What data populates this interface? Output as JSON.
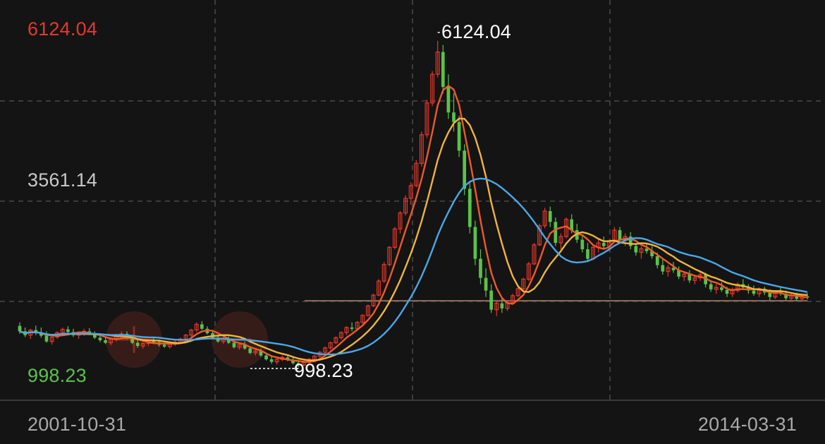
{
  "chart_data": {
    "type": "candlestick",
    "y_axis": {
      "max_label": "6124.04",
      "mid_label": "3561.14",
      "min_label": "998.23",
      "max": 6124.04,
      "min": 998.23
    },
    "x_axis": {
      "start_label": "2001-10-31",
      "end_label": "2014-03-31"
    },
    "annotations": {
      "high": "6124.04",
      "low": "998.23"
    },
    "reference_level": 2040,
    "ohlc": [
      [
        1645,
        1700,
        1520,
        1560
      ],
      [
        1560,
        1620,
        1470,
        1500
      ],
      [
        1500,
        1600,
        1440,
        1580
      ],
      [
        1580,
        1650,
        1500,
        1540
      ],
      [
        1540,
        1620,
        1460,
        1490
      ],
      [
        1490,
        1560,
        1380,
        1400
      ],
      [
        1400,
        1500,
        1350,
        1470
      ],
      [
        1470,
        1560,
        1440,
        1540
      ],
      [
        1540,
        1620,
        1500,
        1590
      ],
      [
        1590,
        1640,
        1520,
        1550
      ],
      [
        1550,
        1600,
        1470,
        1500
      ],
      [
        1500,
        1560,
        1440,
        1530
      ],
      [
        1530,
        1600,
        1490,
        1560
      ],
      [
        1560,
        1610,
        1500,
        1530
      ],
      [
        1530,
        1560,
        1440,
        1460
      ],
      [
        1460,
        1520,
        1390,
        1420
      ],
      [
        1420,
        1480,
        1360,
        1380
      ],
      [
        1380,
        1460,
        1340,
        1440
      ],
      [
        1440,
        1520,
        1400,
        1490
      ],
      [
        1490,
        1560,
        1450,
        1520
      ],
      [
        1520,
        1560,
        1430,
        1450
      ],
      [
        1450,
        1500,
        1360,
        1380
      ],
      [
        1380,
        1420,
        1300,
        1330
      ],
      [
        1330,
        1390,
        1290,
        1370
      ],
      [
        1370,
        1440,
        1330,
        1410
      ],
      [
        1410,
        1470,
        1360,
        1390
      ],
      [
        1390,
        1430,
        1320,
        1350
      ],
      [
        1350,
        1400,
        1300,
        1320
      ],
      [
        1320,
        1380,
        1290,
        1360
      ],
      [
        1360,
        1420,
        1330,
        1390
      ],
      [
        1390,
        1460,
        1370,
        1440
      ],
      [
        1440,
        1520,
        1410,
        1500
      ],
      [
        1500,
        1600,
        1470,
        1580
      ],
      [
        1580,
        1700,
        1550,
        1670
      ],
      [
        1670,
        1720,
        1580,
        1600
      ],
      [
        1600,
        1640,
        1510,
        1530
      ],
      [
        1530,
        1570,
        1440,
        1460
      ],
      [
        1460,
        1500,
        1380,
        1400
      ],
      [
        1400,
        1470,
        1360,
        1440
      ],
      [
        1440,
        1480,
        1360,
        1380
      ],
      [
        1380,
        1420,
        1290,
        1310
      ],
      [
        1310,
        1370,
        1270,
        1350
      ],
      [
        1350,
        1400,
        1270,
        1290
      ],
      [
        1290,
        1330,
        1200,
        1220
      ],
      [
        1220,
        1280,
        1180,
        1250
      ],
      [
        1250,
        1290,
        1160,
        1180
      ],
      [
        1180,
        1220,
        1100,
        1120
      ],
      [
        1120,
        1170,
        1050,
        1080
      ],
      [
        1080,
        1140,
        1040,
        1120
      ],
      [
        1120,
        1180,
        1090,
        1150
      ],
      [
        1150,
        1190,
        1090,
        1110
      ],
      [
        1110,
        1150,
        1040,
        1060
      ],
      [
        1060,
        1110,
        998.23,
        1030
      ],
      [
        1030,
        1090,
        1010,
        1070
      ],
      [
        1070,
        1140,
        1050,
        1120
      ],
      [
        1120,
        1190,
        1100,
        1170
      ],
      [
        1170,
        1250,
        1140,
        1230
      ],
      [
        1230,
        1320,
        1200,
        1300
      ],
      [
        1300,
        1400,
        1270,
        1380
      ],
      [
        1380,
        1480,
        1360,
        1460
      ],
      [
        1460,
        1560,
        1430,
        1540
      ],
      [
        1540,
        1640,
        1500,
        1620
      ],
      [
        1620,
        1700,
        1560,
        1600
      ],
      [
        1600,
        1720,
        1580,
        1700
      ],
      [
        1700,
        1830,
        1680,
        1810
      ],
      [
        1810,
        1980,
        1790,
        1960
      ],
      [
        1960,
        2150,
        1940,
        2130
      ],
      [
        2130,
        2380,
        2110,
        2350
      ],
      [
        2350,
        2650,
        2320,
        2610
      ],
      [
        2610,
        2900,
        2580,
        2880
      ],
      [
        2880,
        3200,
        2850,
        3170
      ],
      [
        3170,
        3450,
        3100,
        3420
      ],
      [
        3420,
        3700,
        3380,
        3650
      ],
      [
        3650,
        3900,
        3550,
        3850
      ],
      [
        3850,
        4250,
        3820,
        4200
      ],
      [
        4200,
        4700,
        4150,
        4650
      ],
      [
        4650,
        5200,
        4600,
        5150
      ],
      [
        5150,
        5650,
        5100,
        5600
      ],
      [
        5600,
        6124.04,
        5550,
        5950
      ],
      [
        5950,
        6060,
        5300,
        5400
      ],
      [
        5400,
        5600,
        4900,
        5000
      ],
      [
        5000,
        5300,
        4700,
        4850
      ],
      [
        4850,
        4950,
        4300,
        4400
      ],
      [
        4400,
        4500,
        3700,
        3800
      ],
      [
        3800,
        3900,
        3100,
        3200
      ],
      [
        3200,
        3300,
        2600,
        2700
      ],
      [
        2700,
        2850,
        2300,
        2400
      ],
      [
        2400,
        2550,
        2100,
        2200
      ],
      [
        2200,
        2300,
        1850,
        1900
      ],
      [
        1900,
        2050,
        1800,
        2000
      ],
      [
        2000,
        2100,
        1850,
        1920
      ],
      [
        1920,
        2050,
        1880,
        2010
      ],
      [
        2010,
        2150,
        1990,
        2120
      ],
      [
        2120,
        2250,
        2100,
        2230
      ],
      [
        2230,
        2400,
        2200,
        2380
      ],
      [
        2380,
        2650,
        2350,
        2620
      ],
      [
        2620,
        2950,
        2600,
        2920
      ],
      [
        2920,
        3250,
        2900,
        3220
      ],
      [
        3220,
        3500,
        3180,
        3450
      ],
      [
        3450,
        3520,
        3200,
        3280
      ],
      [
        3280,
        3350,
        2900,
        2950
      ],
      [
        2950,
        3100,
        2850,
        3050
      ],
      [
        3050,
        3350,
        3020,
        3320
      ],
      [
        3320,
        3400,
        3100,
        3150
      ],
      [
        3150,
        3250,
        2950,
        3000
      ],
      [
        3000,
        3080,
        2800,
        2850
      ],
      [
        2850,
        2950,
        2650,
        2700
      ],
      [
        2700,
        2900,
        2680,
        2880
      ],
      [
        2880,
        3000,
        2800,
        2950
      ],
      [
        2950,
        3050,
        2850,
        2900
      ],
      [
        2900,
        3000,
        2820,
        2980
      ],
      [
        2980,
        3200,
        2950,
        3150
      ],
      [
        3150,
        3200,
        2950,
        3000
      ],
      [
        3000,
        3100,
        2900,
        3050
      ],
      [
        3050,
        3120,
        2850,
        2900
      ],
      [
        2900,
        2950,
        2750,
        2800
      ],
      [
        2800,
        2900,
        2700,
        2860
      ],
      [
        2860,
        2940,
        2780,
        2820
      ],
      [
        2820,
        2900,
        2700,
        2740
      ],
      [
        2740,
        2800,
        2550,
        2600
      ],
      [
        2600,
        2700,
        2450,
        2500
      ],
      [
        2500,
        2600,
        2420,
        2560
      ],
      [
        2560,
        2650,
        2480,
        2520
      ],
      [
        2520,
        2580,
        2380,
        2420
      ],
      [
        2420,
        2500,
        2350,
        2460
      ],
      [
        2460,
        2520,
        2320,
        2360
      ],
      [
        2360,
        2450,
        2300,
        2400
      ],
      [
        2400,
        2500,
        2350,
        2450
      ],
      [
        2450,
        2480,
        2250,
        2300
      ],
      [
        2300,
        2360,
        2180,
        2220
      ],
      [
        2220,
        2300,
        2150,
        2250
      ],
      [
        2250,
        2330,
        2180,
        2210
      ],
      [
        2210,
        2260,
        2100,
        2150
      ],
      [
        2150,
        2250,
        2100,
        2200
      ],
      [
        2200,
        2330,
        2170,
        2300
      ],
      [
        2300,
        2380,
        2210,
        2250
      ],
      [
        2250,
        2300,
        2150,
        2200
      ],
      [
        2200,
        2280,
        2120,
        2150
      ],
      [
        2150,
        2250,
        2100,
        2230
      ],
      [
        2230,
        2260,
        2130,
        2170
      ],
      [
        2170,
        2220,
        2050,
        2100
      ],
      [
        2100,
        2200,
        2070,
        2180
      ],
      [
        2180,
        2250,
        2120,
        2150
      ],
      [
        2150,
        2200,
        2050,
        2080
      ],
      [
        2080,
        2150,
        2040,
        2120
      ],
      [
        2120,
        2170,
        2040,
        2070
      ],
      [
        2070,
        2150,
        2030,
        2110
      ],
      [
        2110,
        2160,
        2060,
        2090
      ]
    ],
    "series": [
      {
        "name": "",
        "color": "#ee5a2a",
        "values": []
      },
      {
        "name": "",
        "color": "#f0b43c",
        "values": []
      },
      {
        "name": "",
        "color": "#4aa8e8",
        "values": []
      }
    ]
  },
  "colors": {
    "up": "#e2392c",
    "down": "#5ac24a",
    "max_label": "#e2392c",
    "min_label": "#5ac24a",
    "grid": "#4a4a4a",
    "ref_line": "#8d6e5a"
  }
}
